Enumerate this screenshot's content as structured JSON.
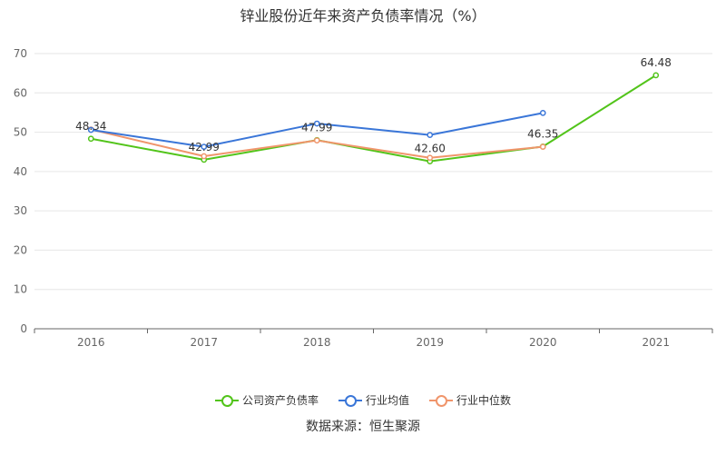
{
  "chart_data": {
    "type": "line",
    "title": "锌业股份近年来资产负债率情况（%）",
    "categories": [
      "2016",
      "2017",
      "2018",
      "2019",
      "2020",
      "2021"
    ],
    "ylim": [
      0,
      70
    ],
    "yticks": [
      0,
      10,
      20,
      30,
      40,
      50,
      60,
      70
    ],
    "grid": true,
    "legend_position": "bottom",
    "series": [
      {
        "name": "公司资产负债率",
        "color": "#52c41a",
        "values": [
          48.34,
          42.99,
          47.99,
          42.6,
          46.35,
          64.48
        ],
        "labels": [
          "48.34",
          "42.99",
          "47.99",
          "42.60",
          "46.35",
          "64.48"
        ]
      },
      {
        "name": "行业均值",
        "color": "#3a76d8",
        "values": [
          50.6,
          46.3,
          52.2,
          49.3,
          54.9,
          null
        ]
      },
      {
        "name": "行业中位数",
        "color": "#f0956b",
        "values": [
          50.7,
          43.9,
          47.9,
          43.5,
          46.3,
          null
        ]
      }
    ]
  },
  "source_text": "数据来源：恒生聚源"
}
